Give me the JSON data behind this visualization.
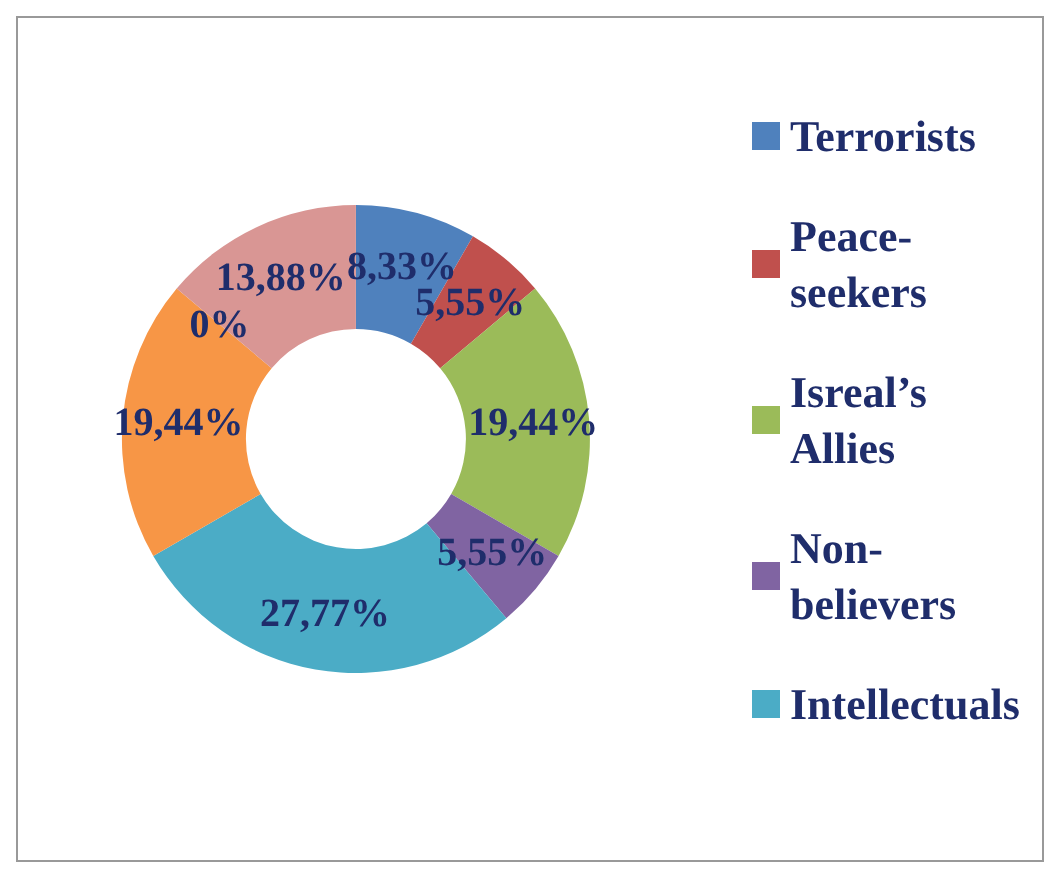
{
  "chart_data": {
    "type": "donut",
    "categories": [
      "Terrorists",
      "Peace-seekers",
      "Isreal’s Allies",
      "Non-believers",
      "Intellectuals",
      null,
      null,
      null
    ],
    "values": [
      8.33,
      5.55,
      19.44,
      5.55,
      27.77,
      19.44,
      0,
      13.88
    ],
    "value_labels": [
      "8,33%",
      "5,55%",
      "19,44%",
      "5,55%",
      "27,77%",
      "19,44%",
      "0%",
      "13,88%"
    ],
    "colors": [
      "#4f81bd",
      "#c0504d",
      "#9bbb59",
      "#8064a2",
      "#4bacc6",
      "#f79646",
      "#2c4d75",
      "#d99694"
    ],
    "legend": "right"
  }
}
